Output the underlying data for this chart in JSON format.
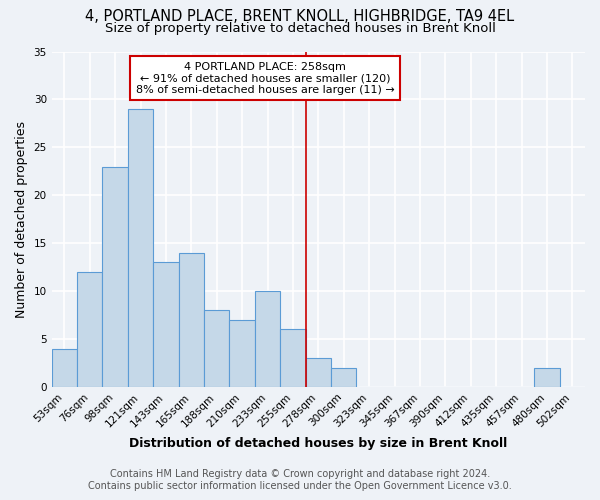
{
  "title": "4, PORTLAND PLACE, BRENT KNOLL, HIGHBRIDGE, TA9 4EL",
  "subtitle": "Size of property relative to detached houses in Brent Knoll",
  "xlabel": "Distribution of detached houses by size in Brent Knoll",
  "ylabel": "Number of detached properties",
  "bar_labels": [
    "53sqm",
    "76sqm",
    "98sqm",
    "121sqm",
    "143sqm",
    "165sqm",
    "188sqm",
    "210sqm",
    "233sqm",
    "255sqm",
    "278sqm",
    "300sqm",
    "323sqm",
    "345sqm",
    "367sqm",
    "390sqm",
    "412sqm",
    "435sqm",
    "457sqm",
    "480sqm",
    "502sqm"
  ],
  "bar_values": [
    4,
    12,
    23,
    29,
    13,
    14,
    8,
    7,
    10,
    6,
    3,
    2,
    0,
    0,
    0,
    0,
    0,
    0,
    0,
    2,
    0
  ],
  "bar_color": "#c5d8e8",
  "bar_edge_color": "#5b9bd5",
  "ylim": [
    0,
    35
  ],
  "yticks": [
    0,
    5,
    10,
    15,
    20,
    25,
    30,
    35
  ],
  "vline_x": 9.5,
  "vline_color": "#cc0000",
  "annotation_title": "4 PORTLAND PLACE: 258sqm",
  "annotation_line1": "← 91% of detached houses are smaller (120)",
  "annotation_line2": "8% of semi-detached houses are larger (11) →",
  "annotation_box_color": "#ffffff",
  "annotation_border_color": "#cc0000",
  "footer1": "Contains HM Land Registry data © Crown copyright and database right 2024.",
  "footer2": "Contains public sector information licensed under the Open Government Licence v3.0.",
  "bg_color": "#eef2f7",
  "grid_color": "#ffffff",
  "title_fontsize": 10.5,
  "subtitle_fontsize": 9.5,
  "axis_label_fontsize": 9,
  "tick_fontsize": 7.5,
  "footer_fontsize": 7
}
